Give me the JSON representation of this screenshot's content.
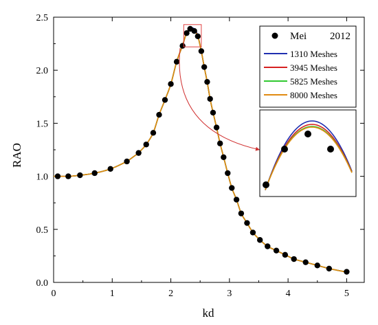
{
  "chart_data": {
    "type": "line",
    "xlabel": "kd",
    "ylabel": "RAO",
    "xlim": [
      0,
      5.3
    ],
    "ylim": [
      0,
      2.5
    ],
    "x_ticks": [
      "0",
      "1",
      "2",
      "3",
      "4",
      "5"
    ],
    "y_ticks": [
      "0.0",
      "0.5",
      "1.0",
      "1.5",
      "2.0",
      "2.5"
    ],
    "grid": false,
    "legend_position": "top-right",
    "legend": {
      "scatter_name": "Mei",
      "scatter_year": "2012"
    },
    "scatter": {
      "name": "Mei 2012",
      "x": [
        0.07,
        0.25,
        0.45,
        0.7,
        0.97,
        1.25,
        1.45,
        1.58,
        1.7,
        1.8,
        1.9,
        2.0,
        2.1,
        2.2,
        2.27,
        2.33,
        2.4,
        2.46,
        2.52,
        2.57,
        2.62,
        2.67,
        2.72,
        2.78,
        2.84,
        2.9,
        2.97,
        3.04,
        3.12,
        3.2,
        3.3,
        3.4,
        3.52,
        3.65,
        3.8,
        3.95,
        4.1,
        4.3,
        4.5,
        4.7,
        5.0
      ],
      "y": [
        1.0,
        1.0,
        1.01,
        1.03,
        1.07,
        1.14,
        1.22,
        1.3,
        1.41,
        1.58,
        1.72,
        1.87,
        2.08,
        2.23,
        2.35,
        2.39,
        2.37,
        2.32,
        2.18,
        2.03,
        1.89,
        1.73,
        1.6,
        1.46,
        1.31,
        1.18,
        1.03,
        0.89,
        0.78,
        0.65,
        0.56,
        0.47,
        0.4,
        0.34,
        0.3,
        0.26,
        0.22,
        0.19,
        0.16,
        0.13,
        0.1
      ]
    },
    "series": [
      {
        "name": "1310 Meshes",
        "color": "#1f2fb0"
      },
      {
        "name": "3945 Meshes",
        "color": "#d62020"
      },
      {
        "name": "5825 Meshes",
        "color": "#2ec82e"
      },
      {
        "name": "8000 Meshes",
        "color": "#e08a10"
      }
    ],
    "inset": {
      "zoom_region_x": [
        2.22,
        2.52
      ],
      "zoom_region_y": [
        2.22,
        2.43
      ],
      "peak_heights": [
        2.42,
        2.405,
        2.4,
        2.4
      ]
    }
  }
}
